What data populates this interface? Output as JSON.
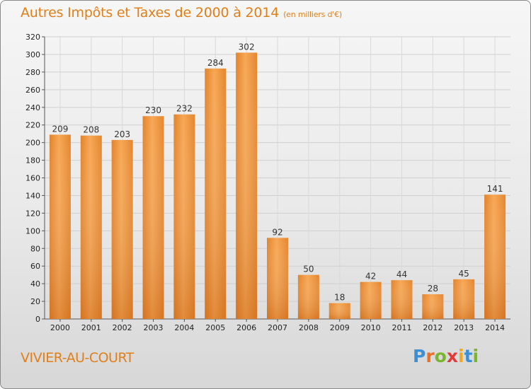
{
  "chart_data": {
    "type": "bar",
    "title": "Autres Impôts et Taxes de 2000 à 2014",
    "subtitle": "(en milliers d'€)",
    "categories": [
      "2000",
      "2001",
      "2002",
      "2003",
      "2004",
      "2005",
      "2006",
      "2007",
      "2008",
      "2009",
      "2010",
      "2011",
      "2012",
      "2013",
      "2014"
    ],
    "values": [
      209,
      208,
      203,
      230,
      232,
      284,
      302,
      92,
      50,
      18,
      42,
      44,
      28,
      45,
      141
    ],
    "ylim": [
      0,
      320
    ],
    "yticks": [
      0,
      20,
      40,
      60,
      80,
      100,
      120,
      140,
      160,
      180,
      200,
      220,
      240,
      260,
      280,
      300,
      320
    ],
    "grid": true,
    "bar_color_light": "#f5a14a",
    "bar_color_dark": "#d8741b"
  },
  "footer": {
    "town": "VIVIER-AU-COURT",
    "brand": [
      "P",
      "r",
      "o",
      "x",
      "i",
      "t",
      "i"
    ]
  }
}
